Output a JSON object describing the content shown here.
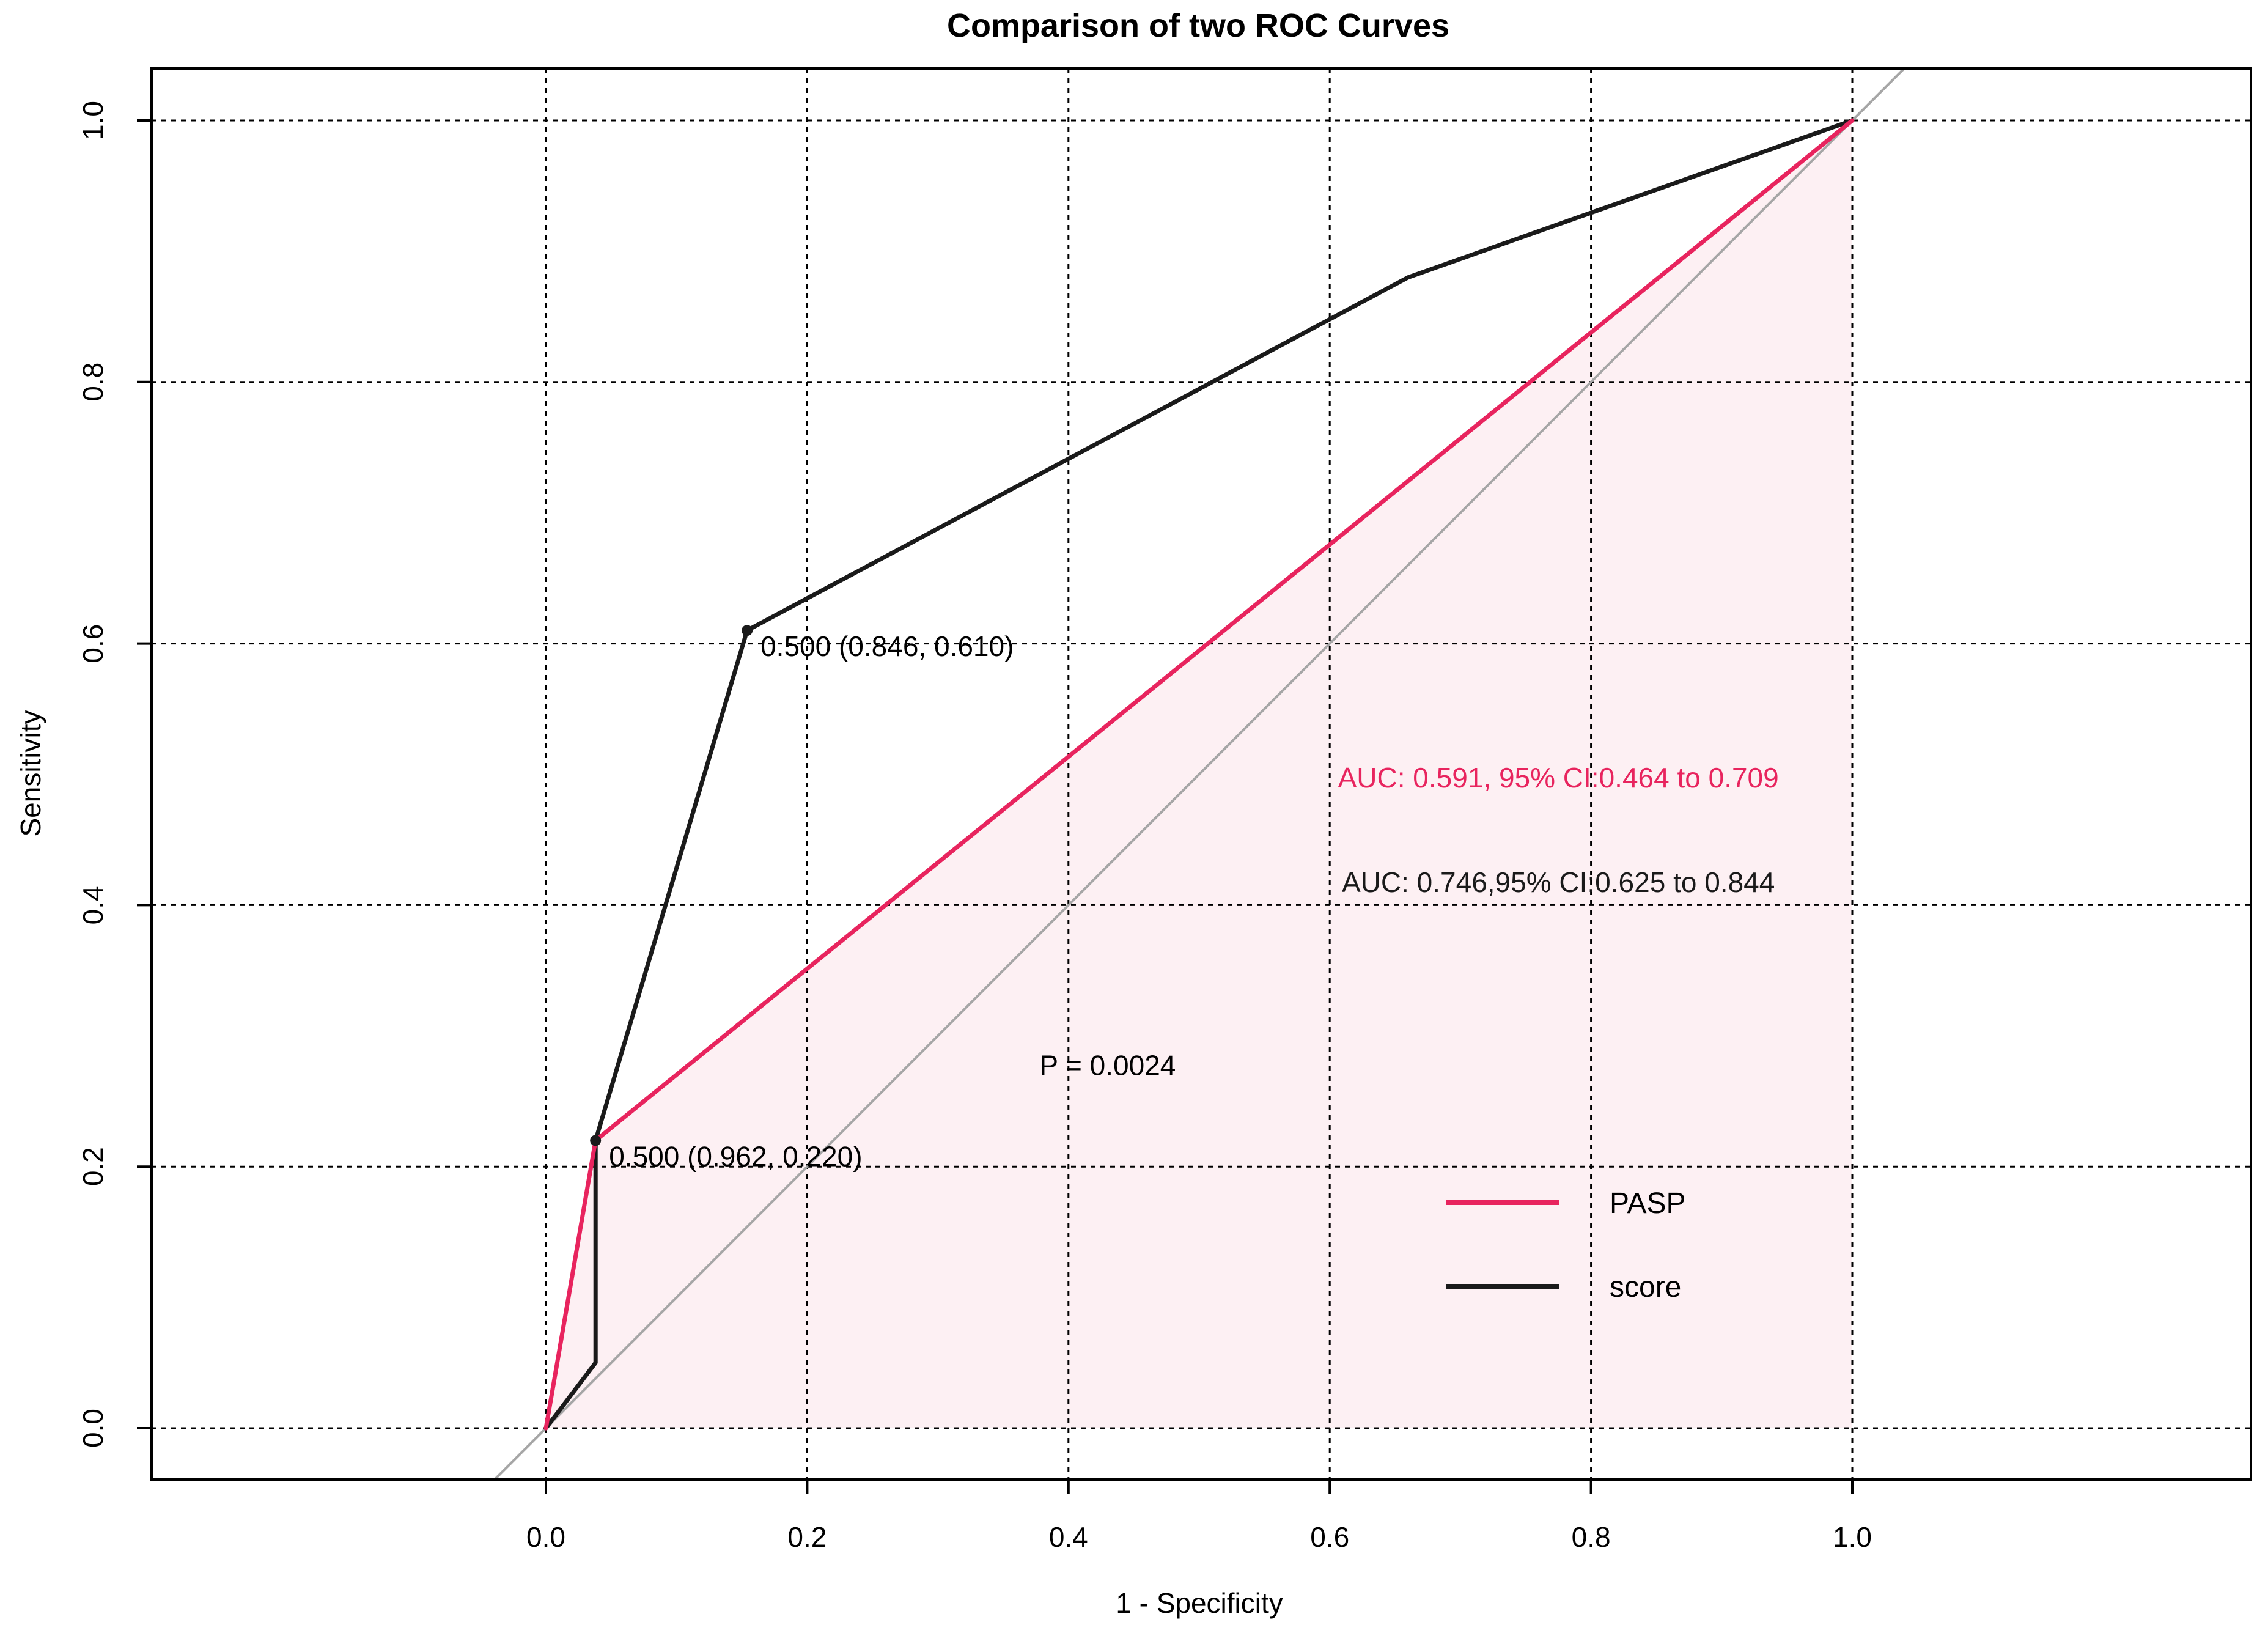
{
  "chart_data": {
    "type": "line",
    "title": "Comparison of two ROC Curves",
    "xlabel": "1 - Specificity",
    "ylabel": "Sensitivity",
    "xlim": [
      0.0,
      1.0
    ],
    "ylim": [
      0.0,
      1.0
    ],
    "x_ticks": [
      "0.0",
      "0.2",
      "0.4",
      "0.6",
      "0.8",
      "1.0"
    ],
    "y_ticks": [
      "0.0",
      "0.2",
      "0.4",
      "0.6",
      "0.8",
      "1.0"
    ],
    "grid": true,
    "legend_position": "bottom-right",
    "series": [
      {
        "name": "PASP",
        "color": "#e8245e",
        "shaded": true,
        "fill_color": "#fdf0f3",
        "x": [
          0.0,
          0.038,
          1.0
        ],
        "y": [
          0.0,
          0.22,
          1.0
        ]
      },
      {
        "name": "score",
        "color": "#1a1a1a",
        "x": [
          0.0,
          0.038,
          0.038,
          0.154,
          0.66,
          1.0
        ],
        "y": [
          0.0,
          0.05,
          0.22,
          0.61,
          0.88,
          1.0
        ]
      }
    ],
    "reference_line": {
      "color": "#a6a6a6",
      "x": [
        -0.04,
        1.04
      ],
      "y": [
        -0.04,
        1.04
      ]
    },
    "threshold_points": [
      {
        "series": "score",
        "x": 0.154,
        "y": 0.61,
        "label": "0.500 (0.846, 0.610)"
      },
      {
        "series": "PASP",
        "x": 0.038,
        "y": 0.22,
        "label": "0.500 (0.962, 0.220)"
      }
    ],
    "annotations": [
      {
        "text": "AUC: 0.591, 95% CI:0.464 to 0.709",
        "color": "#e8245e",
        "x": 0.775,
        "y": 0.49
      },
      {
        "text": "AUC: 0.746,95% CI:0.625 to 0.844",
        "color": "#1a1a1a",
        "x": 0.775,
        "y": 0.41
      },
      {
        "text": "P = 0.0024",
        "color": "#000000",
        "x": 0.43,
        "y": 0.27
      }
    ]
  }
}
